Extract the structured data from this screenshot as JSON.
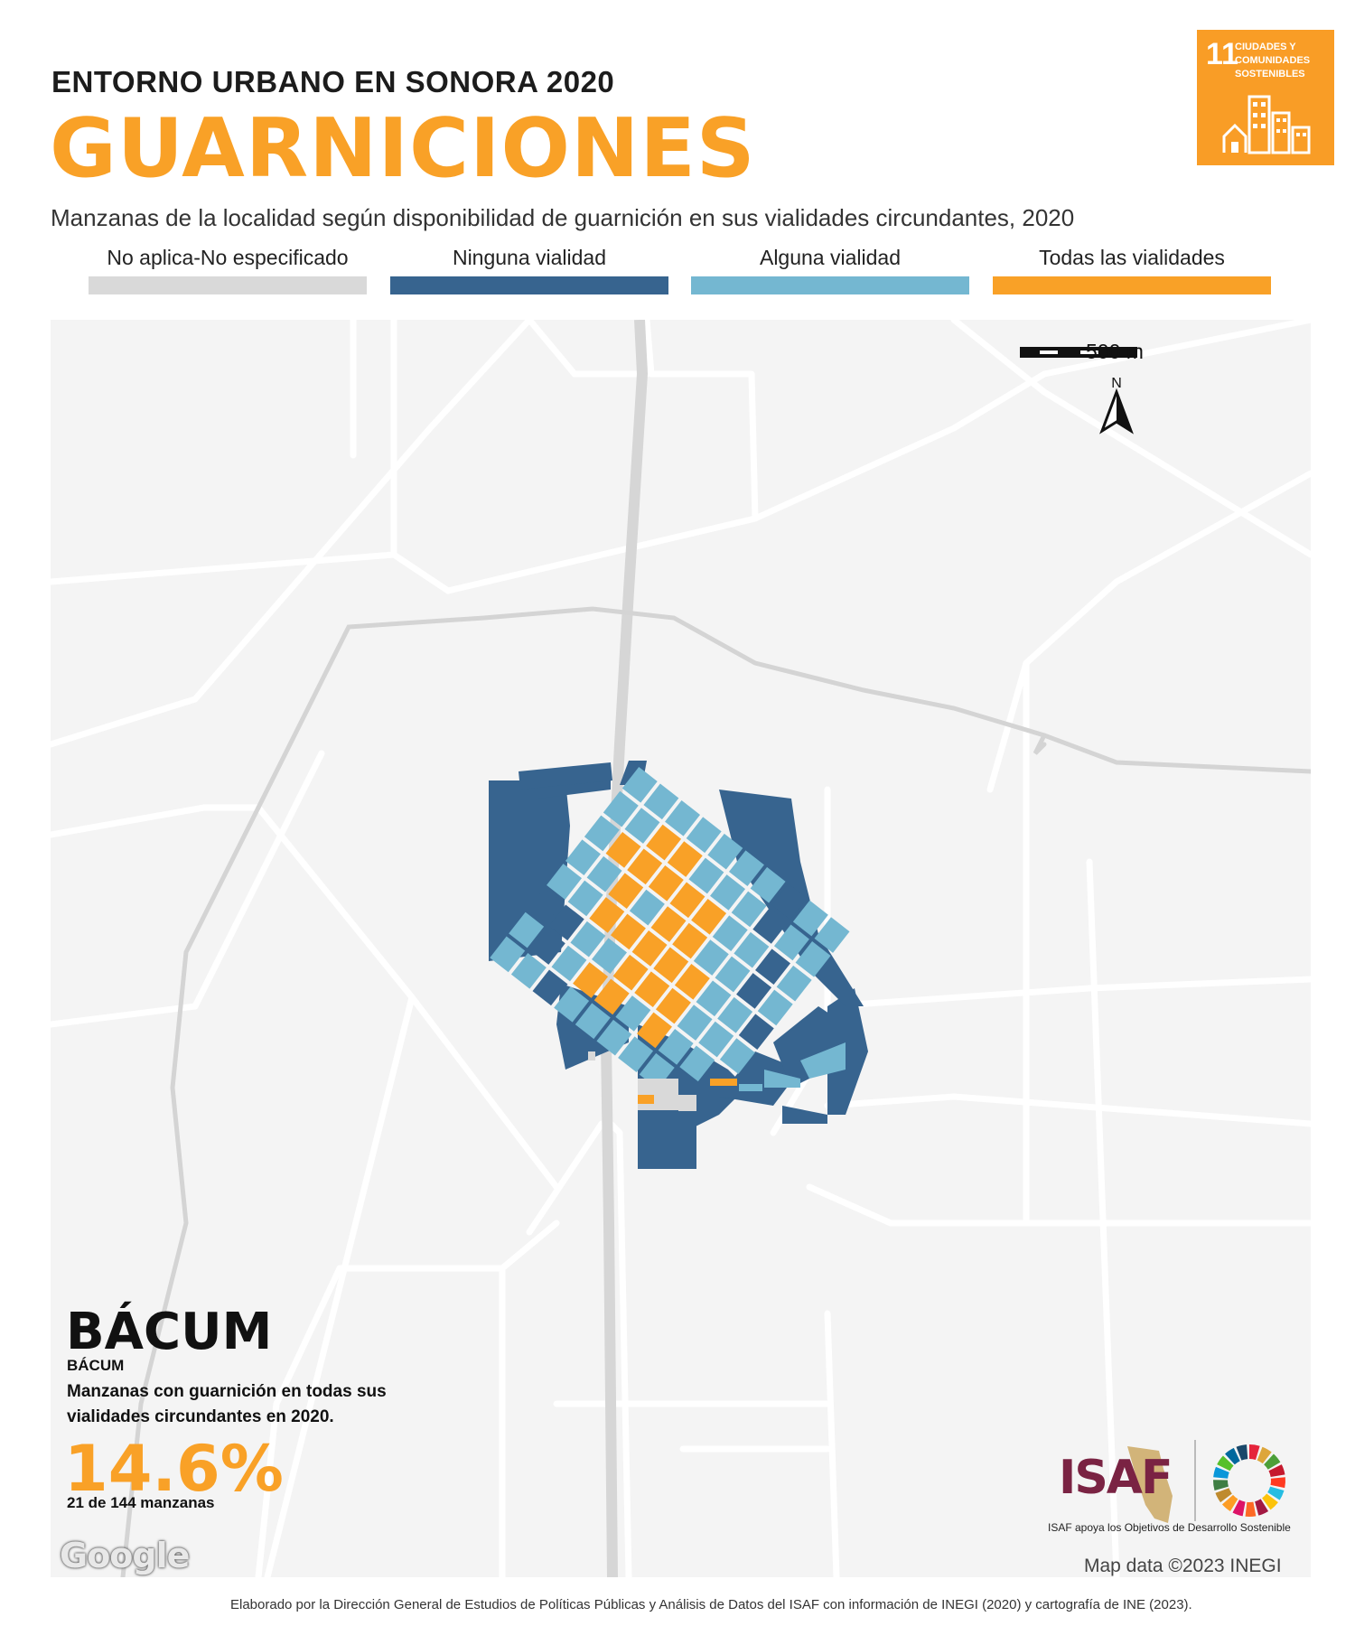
{
  "header": {
    "subtitle": "ENTORNO URBANO EN SONORA 2020",
    "title": "GUARNICIONES",
    "description": "Manzanas de la localidad según disponibilidad de guarnición en sus vialidades circundantes, 2020"
  },
  "sdg_badge": {
    "number": "11",
    "label": "CIUDADES Y COMUNIDADES SOSTENIBLES",
    "color": "#f99d26"
  },
  "legend": [
    {
      "label": "No aplica-No especificado",
      "color": "#d9d9d9"
    },
    {
      "label": "Ninguna vialidad",
      "color": "#37648f"
    },
    {
      "label": "Alguna vialidad",
      "color": "#74b7d1"
    },
    {
      "label": "Todas las vialidades",
      "color": "#f9a127"
    }
  ],
  "map": {
    "scale_label": "500 m",
    "north_label": "N",
    "attribution": "Map data ©2023 INEGI",
    "google_label": "Google"
  },
  "locality": {
    "name": "BÁCUM",
    "municipality": "BÁCUM",
    "description": "Manzanas con guarnición en todas sus vialidades circundantes en 2020.",
    "percent": "14.6%",
    "count": "21 de 144 manzanas"
  },
  "footer": {
    "isaf_label": "ISAF",
    "isaf_note": "ISAF apoya los Objetivos de Desarrollo Sostenible",
    "credit": "Elaborado por la Dirección General de Estudios de Políticas Públicas y Análisis de Datos del ISAF con información de INEGI (2020) y cartografía de INE (2023)."
  }
}
